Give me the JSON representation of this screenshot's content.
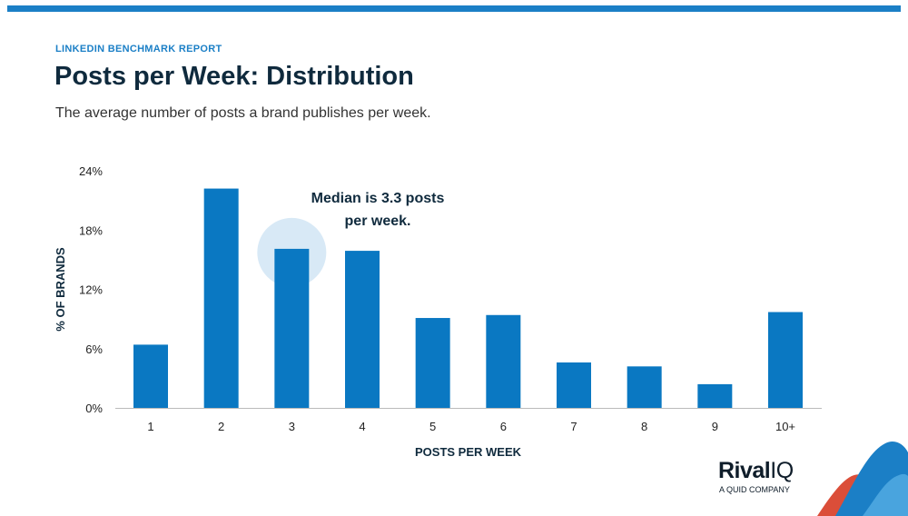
{
  "header": {
    "eyebrow": "LINKEDIN BENCHMARK REPORT",
    "title": "Posts per Week: Distribution",
    "subtitle": "The average number of posts a brand publishes per week."
  },
  "annotation": {
    "line1": "Median is 3.3 posts",
    "line2": "per week."
  },
  "brand": {
    "name_part1": "Rival",
    "name_part2": "IQ",
    "tagline": "A QUID COMPANY"
  },
  "colors": {
    "accent": "#1b7fc6",
    "bar": "#0a78c2",
    "title": "#0f2a3d",
    "highlight": "#d8e9f6"
  },
  "chart_data": {
    "type": "bar",
    "categories": [
      "1",
      "2",
      "3",
      "4",
      "5",
      "6",
      "7",
      "8",
      "9",
      "10+"
    ],
    "values": [
      6.4,
      22.2,
      16.1,
      15.9,
      9.1,
      9.4,
      4.6,
      4.2,
      2.4,
      9.7
    ],
    "xlabel": "POSTS PER WEEK",
    "ylabel": "% OF BRANDS",
    "ylim": [
      0,
      24
    ],
    "yticks": [
      0,
      6,
      12,
      18,
      24
    ],
    "ytick_labels": [
      "0%",
      "6%",
      "12%",
      "18%",
      "24%"
    ],
    "highlight_category": "3",
    "grid": false
  }
}
